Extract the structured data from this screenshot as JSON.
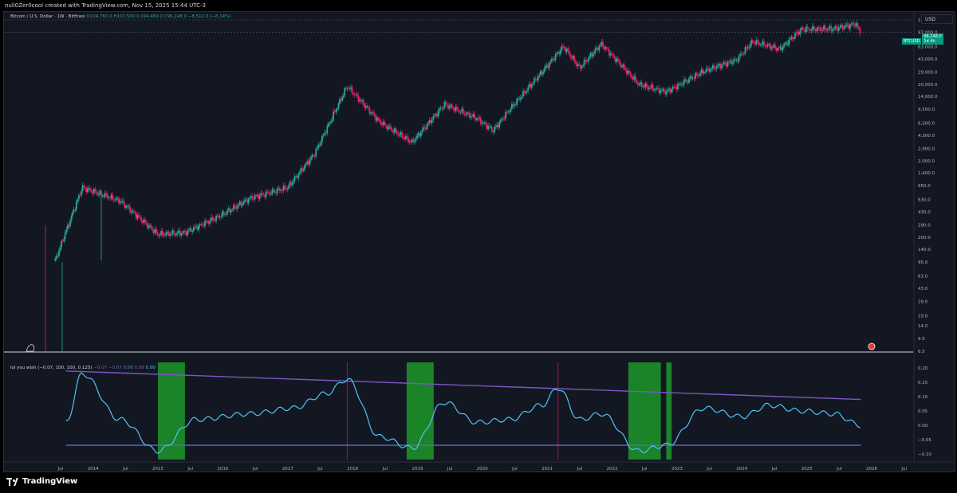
{
  "header": {
    "caption": "null0Zer0cool created with TradingView.com, Nov 15, 2025 15:44 UTC-3"
  },
  "main_pane": {
    "legend_symbol": "Bitcoin / U.S. Dollar · 1W · Bitfinex",
    "legend_ohlc": "O104,760.0  H107,500.0  L94,469.0  C96,248.0  −8,512.0 (−8.14%)",
    "currency_button": "USD",
    "symbol_tag": "BTCUSD",
    "last_price": "96,248.0",
    "time_to_close": "1d 4h",
    "price_axis": [
      "140,000.0",
      "97,000.0",
      "63,000.0",
      "43,000.0",
      "29,000.0",
      "20,000.0",
      "14,000.0",
      "9,500.0",
      "6,300.0",
      "4,300.0",
      "2,900.0",
      "2,000.0",
      "1,400.0",
      "950.0",
      "630.0",
      "430.0",
      "290.0",
      "200.0",
      "140.0",
      "95.0",
      "63.0",
      "43.0",
      "29.0",
      "19.0",
      "14.0",
      "9.5",
      "6.5"
    ]
  },
  "indicator_pane": {
    "name": "lol you wish",
    "params": "(−0.07, 100, 100, 0.125)",
    "values": [
      "−0.07",
      "−0.07",
      "0.06",
      "0.08",
      "0.00"
    ],
    "current_value": "0.00",
    "axis": [
      "0.20",
      "0.15",
      "0.10",
      "0.05",
      "0.00",
      "−0.05",
      "−0.10"
    ]
  },
  "time_axis": [
    "Jul",
    "2014",
    "Jul",
    "2015",
    "Jul",
    "2016",
    "Jul",
    "2017",
    "Jul",
    "2018",
    "Jul",
    "2019",
    "Jul",
    "2020",
    "Jul",
    "2021",
    "Jul",
    "2022",
    "Jul",
    "2023",
    "Jul",
    "2024",
    "Jul",
    "2025",
    "Jul",
    "2026",
    "Jul"
  ],
  "footer": {
    "brand": "TradingView"
  },
  "colors": {
    "background": "#131722",
    "up": "#26a69a",
    "down": "#e91e63",
    "oscillator": "#4fc3f7",
    "trendline": "#7e57c2",
    "zone": "#1b8a2a",
    "marker": "#c2185b"
  },
  "chart_data": [
    {
      "type": "line",
      "title": "Bitcoin / U.S. Dollar · 1W · Bitfinex",
      "y_scale": "log",
      "ylim": [
        6.5,
        140000
      ],
      "x": [
        "2013-06",
        "2013-11",
        "2014-06",
        "2015-01",
        "2015-06",
        "2016-01",
        "2016-06",
        "2017-01",
        "2017-06",
        "2017-12",
        "2018-06",
        "2018-12",
        "2019-06",
        "2019-12",
        "2020-03",
        "2020-06",
        "2020-12",
        "2021-04",
        "2021-07",
        "2021-11",
        "2022-06",
        "2022-11",
        "2023-06",
        "2023-12",
        "2024-03",
        "2024-08",
        "2024-12",
        "2025-06",
        "2025-10",
        "2025-11"
      ],
      "series": [
        {
          "name": "BTCUSD",
          "values": [
            100,
            900,
            600,
            220,
            230,
            400,
            650,
            900,
            2500,
            19000,
            6500,
            3500,
            11000,
            7200,
            5000,
            9300,
            29000,
            63000,
            33000,
            68000,
            20000,
            16000,
            30000,
            42000,
            73000,
            58000,
            105000,
            107000,
            124000,
            96248
          ]
        }
      ]
    },
    {
      "type": "line",
      "title": "lol you wish (−0.07, 100, 100, 0.125)",
      "ylim": [
        -0.12,
        0.22
      ],
      "x": [
        "2013-08",
        "2013-11",
        "2014-06",
        "2015-01",
        "2015-08",
        "2016-06",
        "2017-02",
        "2017-08",
        "2017-12",
        "2018-06",
        "2018-12",
        "2019-06",
        "2019-12",
        "2020-06",
        "2020-12",
        "2021-03",
        "2021-07",
        "2021-11",
        "2022-06",
        "2022-11",
        "2023-06",
        "2024-01",
        "2024-06",
        "2024-12",
        "2025-06",
        "2025-11"
      ],
      "series": [
        {
          "name": "lol you wish",
          "values": [
            0.01,
            0.18,
            0.02,
            -0.09,
            0.02,
            0.04,
            0.06,
            0.11,
            0.16,
            -0.04,
            -0.08,
            0.08,
            0.01,
            0.02,
            0.07,
            0.13,
            0.02,
            0.04,
            -0.09,
            -0.07,
            0.06,
            0.03,
            0.07,
            0.05,
            0.04,
            0.0
          ]
        }
      ]
    }
  ]
}
